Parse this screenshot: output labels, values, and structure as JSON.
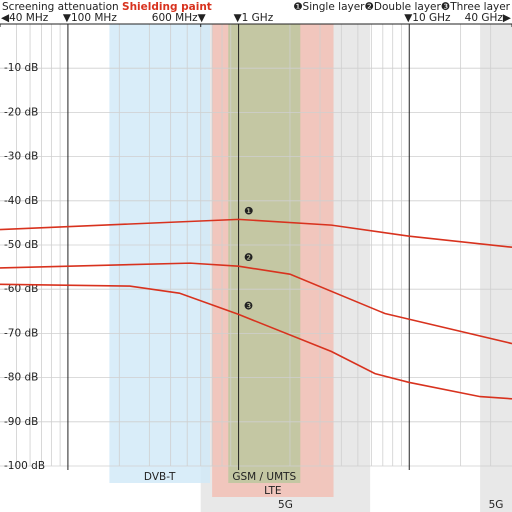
{
  "chart_data": {
    "type": "line",
    "title": "Screening attenuation",
    "subtitle": "Shielding paint",
    "xscale": "log",
    "xlim": [
      40,
      40000
    ],
    "ylim": [
      -100,
      0
    ],
    "xticks": [
      {
        "value": 40,
        "label": "◀40 MHz"
      },
      {
        "value": 100,
        "label": "▼100 MHz"
      },
      {
        "value": 600,
        "label": "600 MHz▼"
      },
      {
        "value": 1000,
        "label": "▼1 GHz"
      },
      {
        "value": 10000,
        "label": "▼10 GHz"
      },
      {
        "value": 40000,
        "label": "40 GHz▶"
      }
    ],
    "xminor": [
      50,
      60,
      70,
      80,
      90,
      200,
      300,
      400,
      500,
      600,
      700,
      800,
      900,
      2000,
      3000,
      4000,
      5000,
      6000,
      7000,
      8000,
      9000,
      20000,
      30000
    ],
    "yticks": [
      {
        "value": -10,
        "label": "-10 dB"
      },
      {
        "value": -20,
        "label": "-20 dB"
      },
      {
        "value": -30,
        "label": "-30 dB"
      },
      {
        "value": -40,
        "label": "-40 dB"
      },
      {
        "value": -50,
        "label": "-50 dB"
      },
      {
        "value": -60,
        "label": "-60 dB"
      },
      {
        "value": -70,
        "label": "-70 dB"
      },
      {
        "value": -80,
        "label": "-80 dB"
      },
      {
        "value": -90,
        "label": "-90 dB"
      },
      {
        "value": -100,
        "label": "-100 dB"
      }
    ],
    "grid": true,
    "series": [
      {
        "name": "Single layer",
        "marker": "❶",
        "color": "#d8321e",
        "x": [
          40,
          1000,
          3500,
          10000,
          40000
        ],
        "values": [
          -46.5,
          -44.2,
          -45.5,
          -48,
          -50.5
        ]
      },
      {
        "name": "Double layer",
        "marker": "❷",
        "color": "#d8321e",
        "x": [
          40,
          520,
          1000,
          2000,
          7200,
          10000,
          40000
        ],
        "values": [
          -55.2,
          -54.1,
          -54.8,
          -56.6,
          -65.5,
          -66.8,
          -72.3
        ]
      },
      {
        "name": "Three layer",
        "marker": "❸",
        "color": "#d8321e",
        "x": [
          40,
          230,
          450,
          1000,
          3500,
          6300,
          10000,
          26000,
          40000
        ],
        "values": [
          -58.9,
          -59.3,
          -60.9,
          -65.7,
          -74.1,
          -79.1,
          -81.1,
          -84.3,
          -84.8
        ]
      }
    ],
    "bands": [
      {
        "name": "5G",
        "range": [
          600,
          5900
        ],
        "color": "#e2e2e2"
      },
      {
        "name": "5G",
        "range": [
          26000,
          40000
        ],
        "color": "#e2e2e2"
      },
      {
        "name": "DVB-T",
        "range": [
          175,
          680
        ],
        "color": "#cfe8f7"
      },
      {
        "name": "LTE",
        "range": [
          700,
          3600
        ],
        "color": "#f3bdb2"
      },
      {
        "name": "GSM / UMTS",
        "range": [
          870,
          2300
        ],
        "color": "#b9c79c"
      }
    ]
  }
}
